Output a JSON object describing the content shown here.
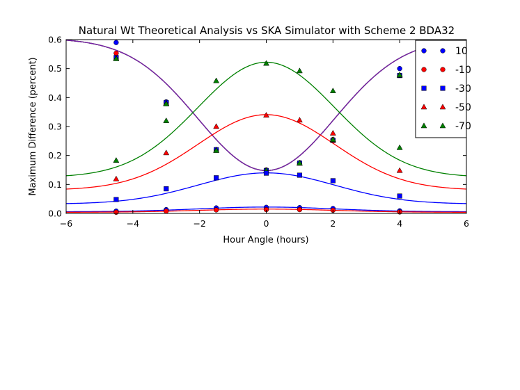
{
  "chart_data": {
    "type": "line",
    "title": "Natural Wt Theoretical Analysis vs SKA Simulator with Scheme 2 BDA32",
    "xlabel": "Hour Angle (hours)",
    "ylabel": "Maximum Difference (percent)",
    "xlim": [
      -6,
      6
    ],
    "ylim": [
      0.0,
      0.6
    ],
    "xticks": [
      -6,
      -4,
      -2,
      0,
      2,
      4,
      6
    ],
    "xtick_labels": [
      "−6",
      "−4",
      "−2",
      "0",
      "2",
      "4",
      "6"
    ],
    "yticks": [
      0.0,
      0.1,
      0.2,
      0.3,
      0.4,
      0.5,
      0.6
    ],
    "ytick_labels": [
      "0.0",
      "0.1",
      "0.2",
      "0.3",
      "0.4",
      "0.5",
      "0.6"
    ],
    "legend_position": "top-right",
    "x_points": [
      -4.5,
      -3,
      -1.5,
      0,
      1,
      2,
      4
    ],
    "series": [
      {
        "name": "10",
        "color": "#0000ff",
        "marker": "circle",
        "points": [
          0.59,
          0.385,
          0.22,
          0.15,
          0.175,
          0.255,
          0.5
        ]
      },
      {
        "name": "-10",
        "color": "#ff0000",
        "marker": "circle",
        "points": [
          0.553,
          0.383,
          0.22,
          0.15,
          0.175,
          0.255,
          0.477
        ]
      },
      {
        "name": "-30",
        "color": "#0000ff",
        "marker": "square",
        "points": [
          0.538,
          0.383,
          0.22,
          0.148,
          0.174,
          0.252,
          0.476
        ]
      },
      {
        "name": "-50",
        "color": "#ff0000",
        "marker": "triangle",
        "points": [
          0.535,
          0.38,
          0.218,
          0.148,
          0.173,
          0.253,
          0.477
        ]
      },
      {
        "name": "-70",
        "color": "#008000",
        "marker": "triangle",
        "points": [
          0.534,
          0.378,
          0.217,
          0.148,
          0.174,
          0.255,
          0.478
        ]
      }
    ],
    "extra_marker_series": [
      {
        "color": "#0000ff",
        "marker": "circle",
        "points": [
          0.008,
          0.013,
          0.019,
          0.021,
          0.02,
          0.017,
          0.009
        ]
      },
      {
        "color": "#ff0000",
        "marker": "circle",
        "points": [
          0.004,
          0.008,
          0.012,
          0.013,
          0.013,
          0.011,
          0.005
        ]
      },
      {
        "color": "#0000ff",
        "marker": "square",
        "points": [
          0.048,
          0.085,
          0.123,
          0.139,
          0.132,
          0.113,
          0.06
        ]
      },
      {
        "color": "#ff0000",
        "marker": "triangle",
        "points": [
          0.119,
          0.209,
          0.3,
          0.339,
          0.322,
          0.277,
          0.148
        ]
      },
      {
        "color": "#008000",
        "marker": "triangle",
        "points": [
          0.183,
          0.32,
          0.458,
          0.518,
          0.492,
          0.423,
          0.227
        ]
      }
    ],
    "curves": [
      {
        "color": "#0000ff",
        "shape": "dip",
        "min": 0.148,
        "edge": 0.598
      },
      {
        "color": "#ff0000",
        "shape": "dip",
        "min": 0.148,
        "edge": 0.598
      },
      {
        "color": "#008000",
        "shape": "dip",
        "min": 0.148,
        "edge": 0.598
      },
      {
        "color": "#7a1fb0",
        "shape": "dip",
        "min": 0.148,
        "edge": 0.598
      },
      {
        "color": "#008000",
        "shape": "bump",
        "peak": 0.522,
        "edge": 0.13
      },
      {
        "color": "#ff0000",
        "shape": "bump",
        "peak": 0.341,
        "edge": 0.084
      },
      {
        "color": "#0000ff",
        "shape": "bump",
        "peak": 0.14,
        "edge": 0.034
      },
      {
        "color": "#0000ff",
        "shape": "bump",
        "peak": 0.022,
        "edge": 0.006
      },
      {
        "color": "#ff0000",
        "shape": "bump",
        "peak": 0.015,
        "edge": 0.004
      }
    ]
  }
}
